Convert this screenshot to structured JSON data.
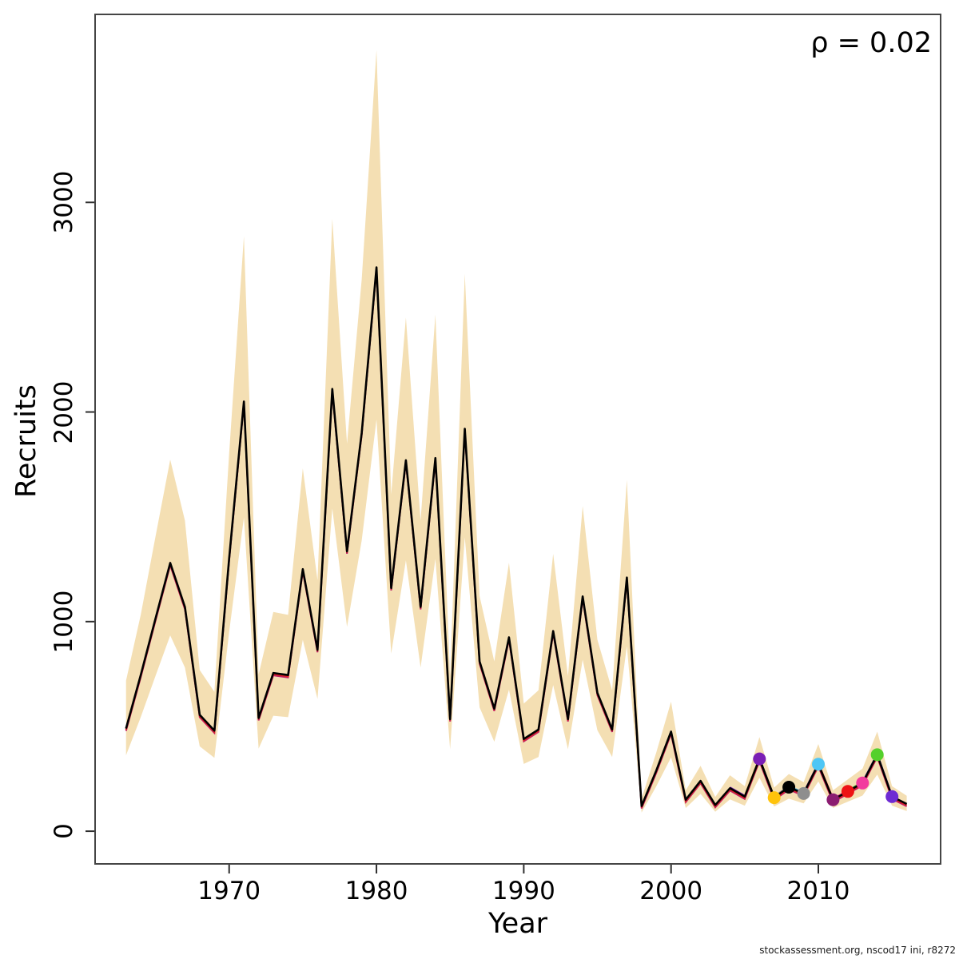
{
  "labels": {
    "ylabel": "Recruits",
    "xlabel": "Year",
    "annotation": "ρ = 0.02",
    "footer": "stockassessment.org, nscod17 ini, r8272"
  },
  "chart_data": {
    "type": "line",
    "title": "",
    "xlabel": "Year",
    "ylabel": "Recruits",
    "annotation": "ρ = 0.02",
    "footer": "stockassessment.org, nscod17 ini, r8272",
    "x_ticks": [
      1970,
      1980,
      1990,
      2000,
      2010
    ],
    "y_ticks": [
      0,
      1000,
      2000,
      3000
    ],
    "xlim": [
      1960.9,
      2018.3
    ],
    "ylim": [
      -156,
      3897
    ],
    "grid": false,
    "legend": "none",
    "band_color": "#F4DFB3",
    "line_color": "#000000",
    "retro_fringe_colors": [
      "#BE2069",
      "#DE1F1F"
    ],
    "years": [
      1963,
      1964,
      1965,
      1966,
      1967,
      1968,
      1969,
      1970,
      1971,
      1972,
      1973,
      1974,
      1975,
      1976,
      1977,
      1978,
      1979,
      1980,
      1981,
      1982,
      1983,
      1984,
      1985,
      1986,
      1987,
      1988,
      1989,
      1990,
      1991,
      1992,
      1993,
      1994,
      1995,
      1996,
      1997,
      1998,
      1999,
      2000,
      2001,
      2002,
      2003,
      2004,
      2005,
      2006,
      2007,
      2008,
      2009,
      2010,
      2011,
      2012,
      2013,
      2014,
      2015,
      2016
    ],
    "recruits": [
      490,
      745,
      1015,
      1280,
      1070,
      555,
      480,
      1300,
      2050,
      540,
      755,
      745,
      1250,
      865,
      2110,
      1335,
      1900,
      2690,
      1160,
      1770,
      1070,
      1780,
      535,
      1920,
      810,
      585,
      925,
      440,
      485,
      955,
      535,
      1120,
      660,
      485,
      1210,
      120,
      290,
      475,
      150,
      240,
      125,
      205,
      165,
      345,
      160,
      210,
      180,
      320,
      150,
      190,
      230,
      365,
      165,
      130
    ],
    "ci_lower": [
      362,
      544,
      741,
      934,
      781,
      405,
      350,
      949,
      1497,
      394,
      551,
      544,
      913,
      631,
      1540,
      975,
      1387,
      1964,
      847,
      1292,
      781,
      1299,
      391,
      1402,
      591,
      427,
      675,
      321,
      354,
      697,
      391,
      818,
      482,
      354,
      883,
      89,
      215,
      352,
      111,
      178,
      93,
      152,
      122,
      255,
      118,
      155,
      133,
      237,
      111,
      141,
      170,
      270,
      122,
      96
    ],
    "ci_upper": [
      718,
      1032,
      1406,
      1773,
      1482,
      769,
      665,
      1801,
      2839,
      748,
      1046,
      1032,
      1731,
      1198,
      2922,
      1849,
      2632,
      3726,
      1607,
      2451,
      1482,
      2465,
      741,
      2659,
      1122,
      810,
      1281,
      609,
      672,
      1323,
      741,
      1551,
      914,
      672,
      1676,
      156,
      377,
      618,
      195,
      312,
      163,
      267,
      215,
      449,
      208,
      273,
      234,
      416,
      195,
      247,
      299,
      475,
      215,
      169
    ],
    "retro_points": [
      {
        "year": 2006,
        "value": 345,
        "color": "#7A1FB5"
      },
      {
        "year": 2007,
        "value": 160,
        "color": "#FFC30B"
      },
      {
        "year": 2008,
        "value": 210,
        "color": "#000000"
      },
      {
        "year": 2009,
        "value": 180,
        "color": "#8E8E8E"
      },
      {
        "year": 2010,
        "value": 320,
        "color": "#4EC6F5"
      },
      {
        "year": 2011,
        "value": 150,
        "color": "#8B1C71"
      },
      {
        "year": 2012,
        "value": 190,
        "color": "#EE1214"
      },
      {
        "year": 2013,
        "value": 230,
        "color": "#F23B9E"
      },
      {
        "year": 2014,
        "value": 365,
        "color": "#54D02B"
      },
      {
        "year": 2015,
        "value": 165,
        "color": "#6E2BD3"
      }
    ]
  }
}
